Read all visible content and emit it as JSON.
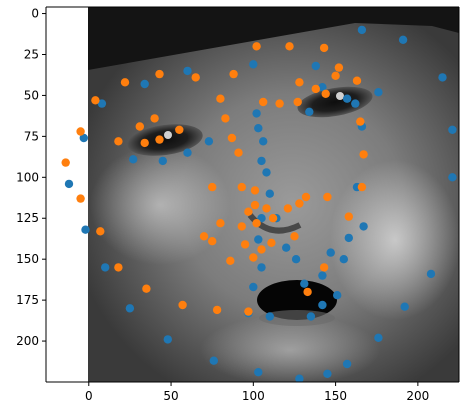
{
  "chart_data": {
    "type": "scatter",
    "title": "",
    "xlabel": "",
    "ylabel": "",
    "xlim": [
      -26,
      225
    ],
    "ylim": [
      225,
      -4
    ],
    "y_inverted": true,
    "grid": false,
    "legend": "none",
    "x_ticks": [
      "0",
      "50",
      "100",
      "150",
      "200"
    ],
    "x_tick_values": [
      0,
      50,
      100,
      150,
      200
    ],
    "y_ticks": [
      "0",
      "25",
      "50",
      "75",
      "100",
      "125",
      "150",
      "175",
      "200"
    ],
    "y_tick_values": [
      0,
      25,
      50,
      75,
      100,
      125,
      150,
      175,
      200
    ],
    "background_image": "grayscale-baby-face-photo",
    "series": [
      {
        "color": "#1f77b4",
        "points": [
          [
            -12,
            104
          ],
          [
            -3,
            76
          ],
          [
            -2,
            132
          ],
          [
            8,
            55
          ],
          [
            10,
            155
          ],
          [
            25,
            180
          ],
          [
            27,
            89
          ],
          [
            34,
            43
          ],
          [
            45,
            90
          ],
          [
            48,
            199
          ],
          [
            60,
            35
          ],
          [
            60,
            85
          ],
          [
            73,
            78
          ],
          [
            76,
            212
          ],
          [
            102,
            61
          ],
          [
            103,
            70
          ],
          [
            105,
            90
          ],
          [
            106,
            78
          ],
          [
            108,
            97
          ],
          [
            110,
            110
          ],
          [
            105,
            125
          ],
          [
            103,
            138
          ],
          [
            100,
            167
          ],
          [
            105,
            155
          ],
          [
            97,
            183
          ],
          [
            110,
            185
          ],
          [
            114,
            125
          ],
          [
            120,
            143
          ],
          [
            126,
            150
          ],
          [
            131,
            165
          ],
          [
            135,
            185
          ],
          [
            142,
            178
          ],
          [
            142,
            160
          ],
          [
            147,
            146
          ],
          [
            151,
            172
          ],
          [
            155,
            150
          ],
          [
            158,
            137
          ],
          [
            163,
            106
          ],
          [
            167,
            130
          ],
          [
            166,
            69
          ],
          [
            162,
            55
          ],
          [
            157,
            52
          ],
          [
            138,
            32
          ],
          [
            142,
            45
          ],
          [
            134,
            60
          ],
          [
            100,
            31
          ],
          [
            103,
            219
          ],
          [
            128,
            223
          ],
          [
            145,
            220
          ],
          [
            157,
            214
          ],
          [
            166,
            10
          ],
          [
            176,
            48
          ],
          [
            176,
            198
          ],
          [
            191,
            16
          ],
          [
            192,
            179
          ],
          [
            208,
            159
          ],
          [
            215,
            39
          ],
          [
            221,
            71
          ],
          [
            221,
            100
          ]
        ]
      },
      {
        "color": "#ff7f0e",
        "points": [
          [
            -14,
            91
          ],
          [
            -5,
            72
          ],
          [
            -5,
            113
          ],
          [
            4,
            53
          ],
          [
            7,
            133
          ],
          [
            18,
            155
          ],
          [
            18,
            78
          ],
          [
            22,
            42
          ],
          [
            31,
            69
          ],
          [
            35,
            168
          ],
          [
            34,
            79
          ],
          [
            40,
            64
          ],
          [
            43,
            77
          ],
          [
            43,
            37
          ],
          [
            55,
            71
          ],
          [
            57,
            178
          ],
          [
            65,
            39
          ],
          [
            70,
            136
          ],
          [
            75,
            106
          ],
          [
            75,
            139
          ],
          [
            78,
            181
          ],
          [
            80,
            128
          ],
          [
            80,
            52
          ],
          [
            83,
            64
          ],
          [
            86,
            151
          ],
          [
            87,
            76
          ],
          [
            88,
            37
          ],
          [
            91,
            85
          ],
          [
            93,
            130
          ],
          [
            93,
            106
          ],
          [
            95,
            141
          ],
          [
            97,
            121
          ],
          [
            97,
            182
          ],
          [
            100,
            149
          ],
          [
            101,
            108
          ],
          [
            101,
            117
          ],
          [
            102,
            128
          ],
          [
            102,
            20
          ],
          [
            106,
            54
          ],
          [
            105,
            144
          ],
          [
            108,
            119
          ],
          [
            111,
            140
          ],
          [
            112,
            125
          ],
          [
            116,
            55
          ],
          [
            121,
            119
          ],
          [
            122,
            20
          ],
          [
            125,
            136
          ],
          [
            127,
            54
          ],
          [
            128,
            116
          ],
          [
            128,
            42
          ],
          [
            132,
            112
          ],
          [
            133,
            170
          ],
          [
            138,
            46
          ],
          [
            143,
            21
          ],
          [
            143,
            155
          ],
          [
            144,
            49
          ],
          [
            145,
            112
          ],
          [
            152,
            33
          ],
          [
            158,
            124
          ],
          [
            163,
            41
          ],
          [
            165,
            66
          ],
          [
            166,
            106
          ],
          [
            167,
            86
          ],
          [
            150,
            38
          ]
        ]
      }
    ]
  }
}
